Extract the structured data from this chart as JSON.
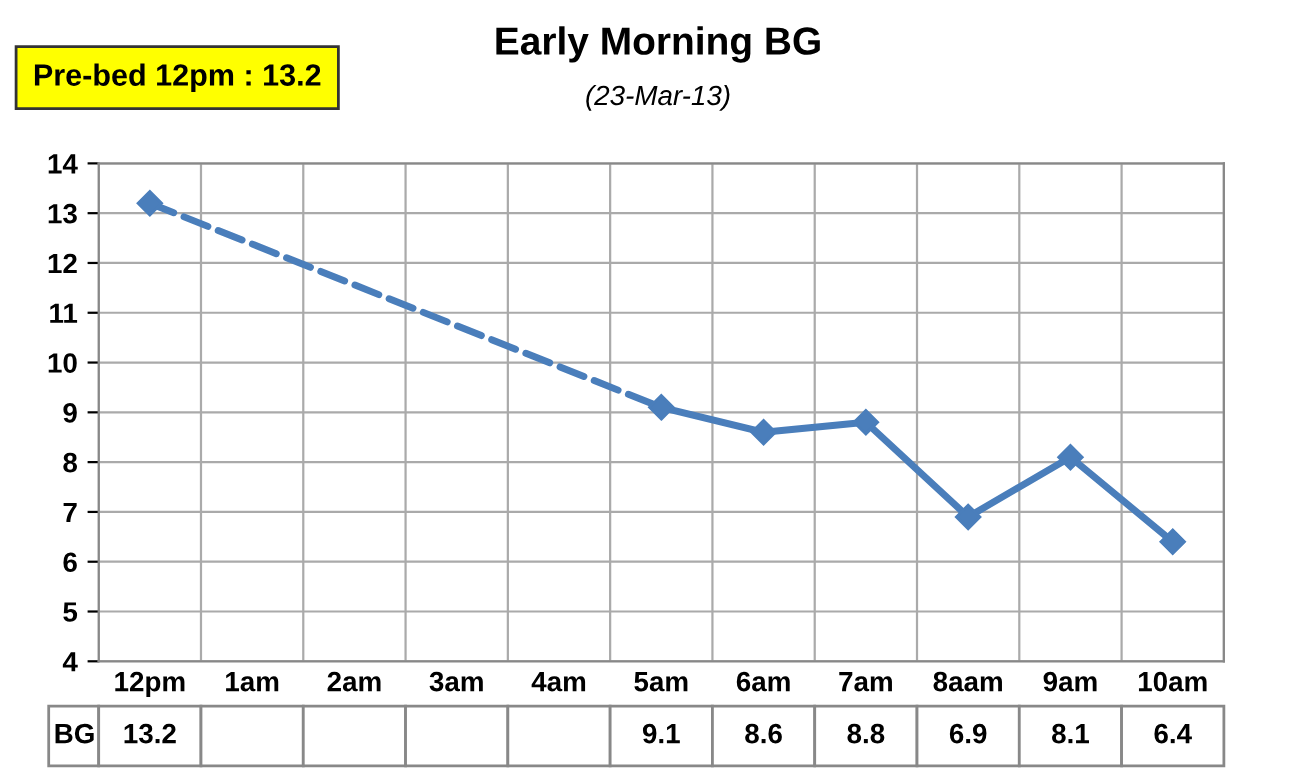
{
  "chart_data": {
    "type": "line",
    "title": "Early Morning BG",
    "subtitle": "(23-Mar-13)",
    "annotations": [
      "Pre-bed 12pm : 13.2"
    ],
    "categories": [
      "12pm",
      "1am",
      "2am",
      "3am",
      "4am",
      "5am",
      "6am",
      "7am",
      "8aam",
      "9am",
      "10am"
    ],
    "series": [
      {
        "name": "BG",
        "color": "#4a7ebb",
        "values": [
          13.2,
          null,
          null,
          null,
          null,
          9.1,
          8.6,
          8.8,
          6.9,
          8.1,
          6.4
        ]
      }
    ],
    "ylim": [
      4,
      14
    ],
    "yticks": [
      4,
      5,
      6,
      7,
      8,
      9,
      10,
      11,
      12,
      13,
      14
    ],
    "grid": true,
    "marker": "diamond",
    "line_style": "solid",
    "data_labels": true
  }
}
